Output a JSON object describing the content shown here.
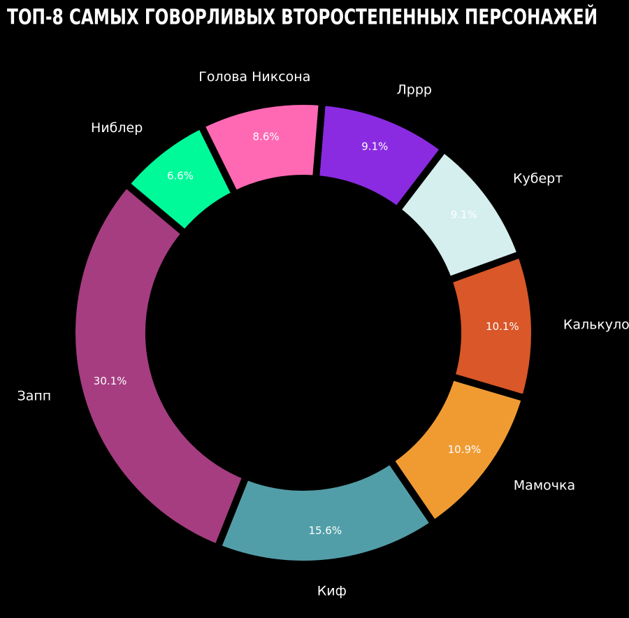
{
  "chart_data": {
    "type": "donut",
    "title": "ТОП-8 САМЫХ ГОВОРЛИВЫХ ВТОРОСТЕПЕННЫХ ПЕРСОНАЖЕЙ",
    "categories": [
      "Запп",
      "Киф",
      "Мамочка",
      "Калькулон",
      "Куберт",
      "Лррр",
      "Голова Никсона",
      "Ниблер"
    ],
    "values": [
      30.1,
      15.6,
      10.9,
      10.1,
      9.1,
      9.1,
      8.6,
      6.6
    ],
    "value_labels": [
      "30.1%",
      "15.6%",
      "10.9%",
      "10.1%",
      "9.1%",
      "9.1%",
      "8.6%",
      "6.6%"
    ],
    "colors": [
      "#a63d80",
      "#529ea8",
      "#f09b32",
      "#d95728",
      "#d5eeee",
      "#8a2be2",
      "#ff69b4",
      "#00fa9a"
    ]
  }
}
